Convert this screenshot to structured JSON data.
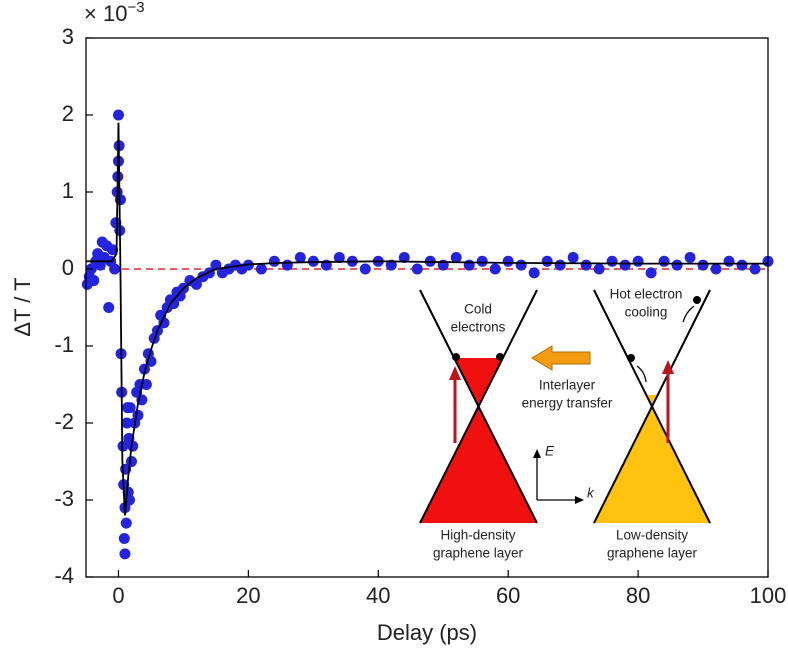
{
  "chart_data": {
    "type": "scatter",
    "xlabel": "Delay (ps)",
    "ylabel": "ΔT / T",
    "y_multiplier": "× 10",
    "y_multiplier_exponent": "−3",
    "xlim": [
      -5,
      100
    ],
    "ylim": [
      -4,
      3
    ],
    "xticks": [
      0,
      20,
      40,
      60,
      80,
      100
    ],
    "yticks": [
      -4,
      -3,
      -2,
      -1,
      0,
      1,
      2,
      3
    ],
    "reference_line": {
      "y": 0,
      "color": "#e8202a",
      "dashed": true
    },
    "series": [
      {
        "style": "marker",
        "color": "#2424e0",
        "x": [
          -4.8,
          -4.5,
          -4.2,
          -3.8,
          -3.5,
          -3.2,
          -2.8,
          -2.5,
          -2.2,
          -1.8,
          -1.5,
          -1.2,
          -0.9,
          -0.6,
          -0.4,
          -0.2,
          -0.1,
          0,
          0,
          0.1,
          0.2,
          0.3,
          0.4,
          0.5,
          0.7,
          0.8,
          0.9,
          1.0,
          1.0,
          1.1,
          1.2,
          1.3,
          1.4,
          1.5,
          1.6,
          1.7,
          1.8,
          2.0,
          2.2,
          2.5,
          2.8,
          3.0,
          3.3,
          3.6,
          4.0,
          4.3,
          4.6,
          5.0,
          5.5,
          6.0,
          6.5,
          7.0,
          7.5,
          8.0,
          8.5,
          9.0,
          9.5,
          10,
          11,
          12,
          13,
          14,
          15,
          16,
          17,
          18,
          19,
          20,
          22,
          24,
          26,
          28,
          30,
          32,
          34,
          36,
          38,
          40,
          42,
          44,
          46,
          48,
          50,
          52,
          54,
          56,
          58,
          60,
          62,
          64,
          66,
          68,
          70,
          72,
          74,
          76,
          78,
          80,
          82,
          84,
          86,
          88,
          90,
          92,
          94,
          96,
          98,
          100
        ],
        "y": [
          -0.2,
          -0.1,
          0.0,
          -0.15,
          0.1,
          0.2,
          0.05,
          0.35,
          0.15,
          0.3,
          -0.5,
          0.1,
          0.25,
          0.0,
          0.6,
          1.0,
          1.2,
          2.0,
          1.4,
          1.6,
          0.5,
          0.9,
          -1.1,
          -1.6,
          -2.3,
          -2.8,
          -3.5,
          -3.7,
          -3.1,
          -2.6,
          -3.3,
          -2.0,
          -1.8,
          -2.9,
          -2.2,
          -3.0,
          -1.8,
          -2.5,
          -2.3,
          -2.0,
          -1.6,
          -1.9,
          -1.5,
          -1.7,
          -1.3,
          -1.5,
          -1.1,
          -1.2,
          -0.9,
          -0.8,
          -0.6,
          -0.7,
          -0.5,
          -0.4,
          -0.45,
          -0.3,
          -0.35,
          -0.25,
          -0.15,
          -0.2,
          -0.1,
          -0.05,
          0.05,
          -0.05,
          0.0,
          0.05,
          0.0,
          0.05,
          0.0,
          0.1,
          0.05,
          0.15,
          0.1,
          0.05,
          0.15,
          0.1,
          0.0,
          0.1,
          0.05,
          0.15,
          0.0,
          0.1,
          0.05,
          0.15,
          0.05,
          0.1,
          0.0,
          0.1,
          0.05,
          -0.05,
          0.1,
          0.05,
          0.15,
          0.05,
          0.0,
          0.1,
          0.05,
          0.1,
          -0.05,
          0.1,
          0.05,
          0.15,
          0.05,
          0.0,
          0.1,
          0.05,
          0.0,
          0.1
        ]
      },
      {
        "style": "line",
        "color": "#000000",
        "x": [
          -5,
          -1,
          -0.3,
          0,
          0.3,
          0.6,
          1,
          1.5,
          2,
          3,
          4,
          5,
          6,
          8,
          10,
          12,
          15,
          20,
          25,
          30,
          40,
          60,
          80,
          100
        ],
        "y": [
          0.1,
          0.1,
          0.2,
          1.9,
          0,
          -2.5,
          -3.2,
          -2.7,
          -2.3,
          -1.75,
          -1.35,
          -1.05,
          -0.8,
          -0.45,
          -0.25,
          -0.12,
          0,
          0.06,
          0.08,
          0.09,
          0.1,
          0.08,
          0.07,
          0.07
        ]
      }
    ],
    "inset_labels": [
      [
        "Cold",
        "electrons"
      ],
      [
        "Hot electron",
        "cooling"
      ],
      [
        "Interlayer",
        "energy transfer"
      ],
      [
        "High-density",
        "graphene layer"
      ],
      [
        "Low-density",
        "graphene layer"
      ]
    ],
    "inset_axes": [
      "E",
      "k"
    ]
  }
}
